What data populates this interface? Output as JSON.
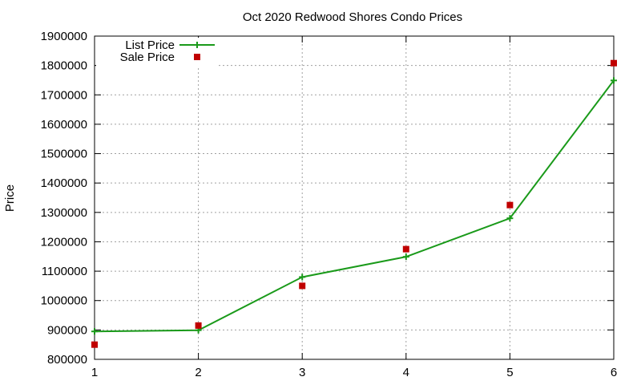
{
  "chart_data": {
    "type": "line",
    "title": "Oct 2020 Redwood Shores Condo Prices",
    "xlabel": "",
    "ylabel": "Price",
    "xlim": [
      1,
      6
    ],
    "ylim": [
      800000,
      1900000
    ],
    "x_ticks": [
      1,
      2,
      3,
      4,
      5,
      6
    ],
    "y_ticks": [
      800000,
      900000,
      1000000,
      1100000,
      1200000,
      1300000,
      1400000,
      1500000,
      1600000,
      1700000,
      1800000,
      1900000
    ],
    "grid": true,
    "legend_position": "top-left",
    "series": [
      {
        "name": "List Price",
        "style": "line-with-plus-markers",
        "color": "#1a9a1a",
        "x": [
          1,
          2,
          3,
          4,
          5,
          6
        ],
        "values": [
          895000,
          899000,
          1080000,
          1149000,
          1280000,
          1749000
        ]
      },
      {
        "name": "Sale Price",
        "style": "square-markers",
        "color": "#c00000",
        "x": [
          1,
          2,
          3,
          4,
          5,
          6
        ],
        "values": [
          850000,
          915000,
          1050000,
          1175000,
          1325000,
          1808000
        ]
      }
    ]
  }
}
